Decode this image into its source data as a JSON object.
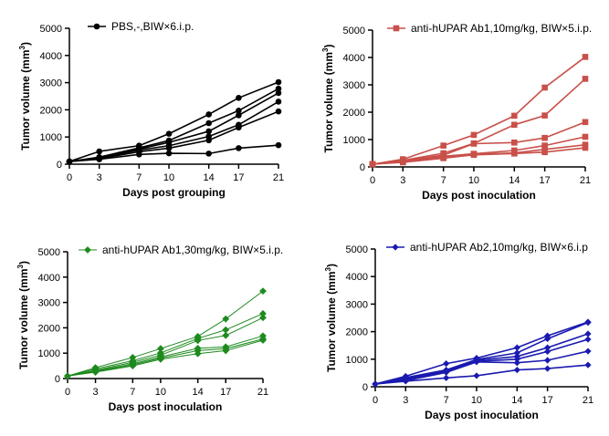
{
  "chart_data": [
    {
      "type": "line",
      "xlabel": "Days post grouping",
      "ylabel_main": "Tumor volume (mm",
      "ylabel_sup": "3",
      "ylabel_end": ")",
      "xlim": [
        0,
        21
      ],
      "ylim": [
        0,
        5000
      ],
      "xticks": [
        0,
        3,
        7,
        10,
        14,
        17,
        21
      ],
      "yticks": [
        0,
        1000,
        2000,
        3000,
        4000,
        5000
      ],
      "legend": "PBS,-,BIW×6.i.p.",
      "legend_position": "top",
      "color": "#000000",
      "marker": "circle",
      "x": [
        0,
        3,
        7,
        10,
        14,
        17,
        21
      ],
      "series": [
        {
          "values": [
            100,
            470,
            680,
            1120,
            1830,
            2440,
            3020
          ]
        },
        {
          "values": [
            100,
            260,
            600,
            870,
            1510,
            1970,
            2780
          ]
        },
        {
          "values": [
            100,
            220,
            560,
            800,
            1210,
            1800,
            2620
          ]
        },
        {
          "values": [
            100,
            230,
            520,
            680,
            1020,
            1450,
            2300
          ]
        },
        {
          "values": [
            100,
            200,
            460,
            590,
            880,
            1350,
            1940
          ]
        },
        {
          "values": [
            100,
            180,
            360,
            400,
            390,
            590,
            700
          ]
        }
      ]
    },
    {
      "type": "line",
      "xlabel": "Days post inoculation",
      "ylabel_main": "Tumor volume (mm",
      "ylabel_sup": "3",
      "ylabel_end": ")",
      "xlim": [
        0,
        21
      ],
      "ylim": [
        0,
        5000
      ],
      "xticks": [
        0,
        3,
        7,
        10,
        14,
        17,
        21
      ],
      "yticks": [
        0,
        1000,
        2000,
        3000,
        4000,
        5000
      ],
      "legend": "anti-hUPAR Ab1,10mg/kg, BIW×5.i.p.",
      "legend_position": "top",
      "color": "#c9504a",
      "marker": "square",
      "x": [
        0,
        3,
        7,
        10,
        14,
        17,
        21
      ],
      "series": [
        {
          "values": [
            100,
            280,
            780,
            1170,
            1870,
            2900,
            4020
          ]
        },
        {
          "values": [
            100,
            240,
            500,
            860,
            1540,
            1880,
            3220
          ]
        },
        {
          "values": [
            100,
            220,
            430,
            850,
            890,
            1060,
            1640
          ]
        },
        {
          "values": [
            100,
            200,
            390,
            480,
            600,
            780,
            1100
          ]
        },
        {
          "values": [
            100,
            190,
            350,
            460,
            510,
            640,
            810
          ]
        },
        {
          "values": [
            100,
            170,
            320,
            440,
            490,
            540,
            700
          ]
        }
      ]
    },
    {
      "type": "line",
      "xlabel": "Days post inoculation",
      "ylabel_main": "Tumor volume (mm",
      "ylabel_sup": "3",
      "ylabel_end": ")",
      "xlim": [
        0,
        21
      ],
      "ylim": [
        0,
        5000
      ],
      "xticks": [
        0,
        3,
        7,
        10,
        14,
        17,
        21
      ],
      "yticks": [
        0,
        1000,
        2000,
        3000,
        4000,
        5000
      ],
      "legend": "anti-hUPAR Ab1,30mg/kg, BIW×5.i.p.",
      "legend_position": "top",
      "color": "#1e8a1e",
      "marker": "diamond",
      "x": [
        0,
        3,
        7,
        10,
        14,
        17,
        21
      ],
      "series": [
        {
          "values": [
            100,
            430,
            830,
            1180,
            1660,
            2350,
            3450
          ]
        },
        {
          "values": [
            100,
            380,
            700,
            1010,
            1580,
            1920,
            2560
          ]
        },
        {
          "values": [
            100,
            330,
            640,
            920,
            1500,
            1700,
            2400
          ]
        },
        {
          "values": [
            100,
            300,
            580,
            850,
            1190,
            1250,
            1680
          ]
        },
        {
          "values": [
            100,
            270,
            540,
            800,
            1100,
            1180,
            1560
          ]
        },
        {
          "values": [
            100,
            250,
            500,
            760,
            980,
            1100,
            1510
          ]
        }
      ]
    },
    {
      "type": "line",
      "xlabel": "Days post inoculation",
      "ylabel_main": "Tumor volume (mm",
      "ylabel_sup": "3",
      "ylabel_end": ")",
      "xlim": [
        0,
        21
      ],
      "ylim": [
        0,
        5000
      ],
      "xticks": [
        0,
        3,
        7,
        10,
        14,
        17,
        21
      ],
      "yticks": [
        0,
        1000,
        2000,
        3000,
        4000,
        5000
      ],
      "legend": "anti-hUPAR Ab2,10mg/kg, BIW×6.i.p",
      "legend_position": "top",
      "color": "#1a1ab0",
      "marker": "diamond",
      "x": [
        0,
        3,
        7,
        10,
        14,
        17,
        21
      ],
      "series": [
        {
          "values": [
            100,
            380,
            840,
            1040,
            1420,
            1850,
            2350
          ]
        },
        {
          "values": [
            100,
            330,
            610,
            990,
            1230,
            1740,
            2330
          ]
        },
        {
          "values": [
            100,
            290,
            590,
            960,
            1100,
            1420,
            1920
          ]
        },
        {
          "values": [
            100,
            250,
            560,
            920,
            1000,
            1280,
            1720
          ]
        },
        {
          "values": [
            100,
            220,
            520,
            900,
            870,
            960,
            1290
          ]
        },
        {
          "values": [
            100,
            200,
            320,
            400,
            610,
            660,
            790
          ]
        }
      ]
    }
  ]
}
